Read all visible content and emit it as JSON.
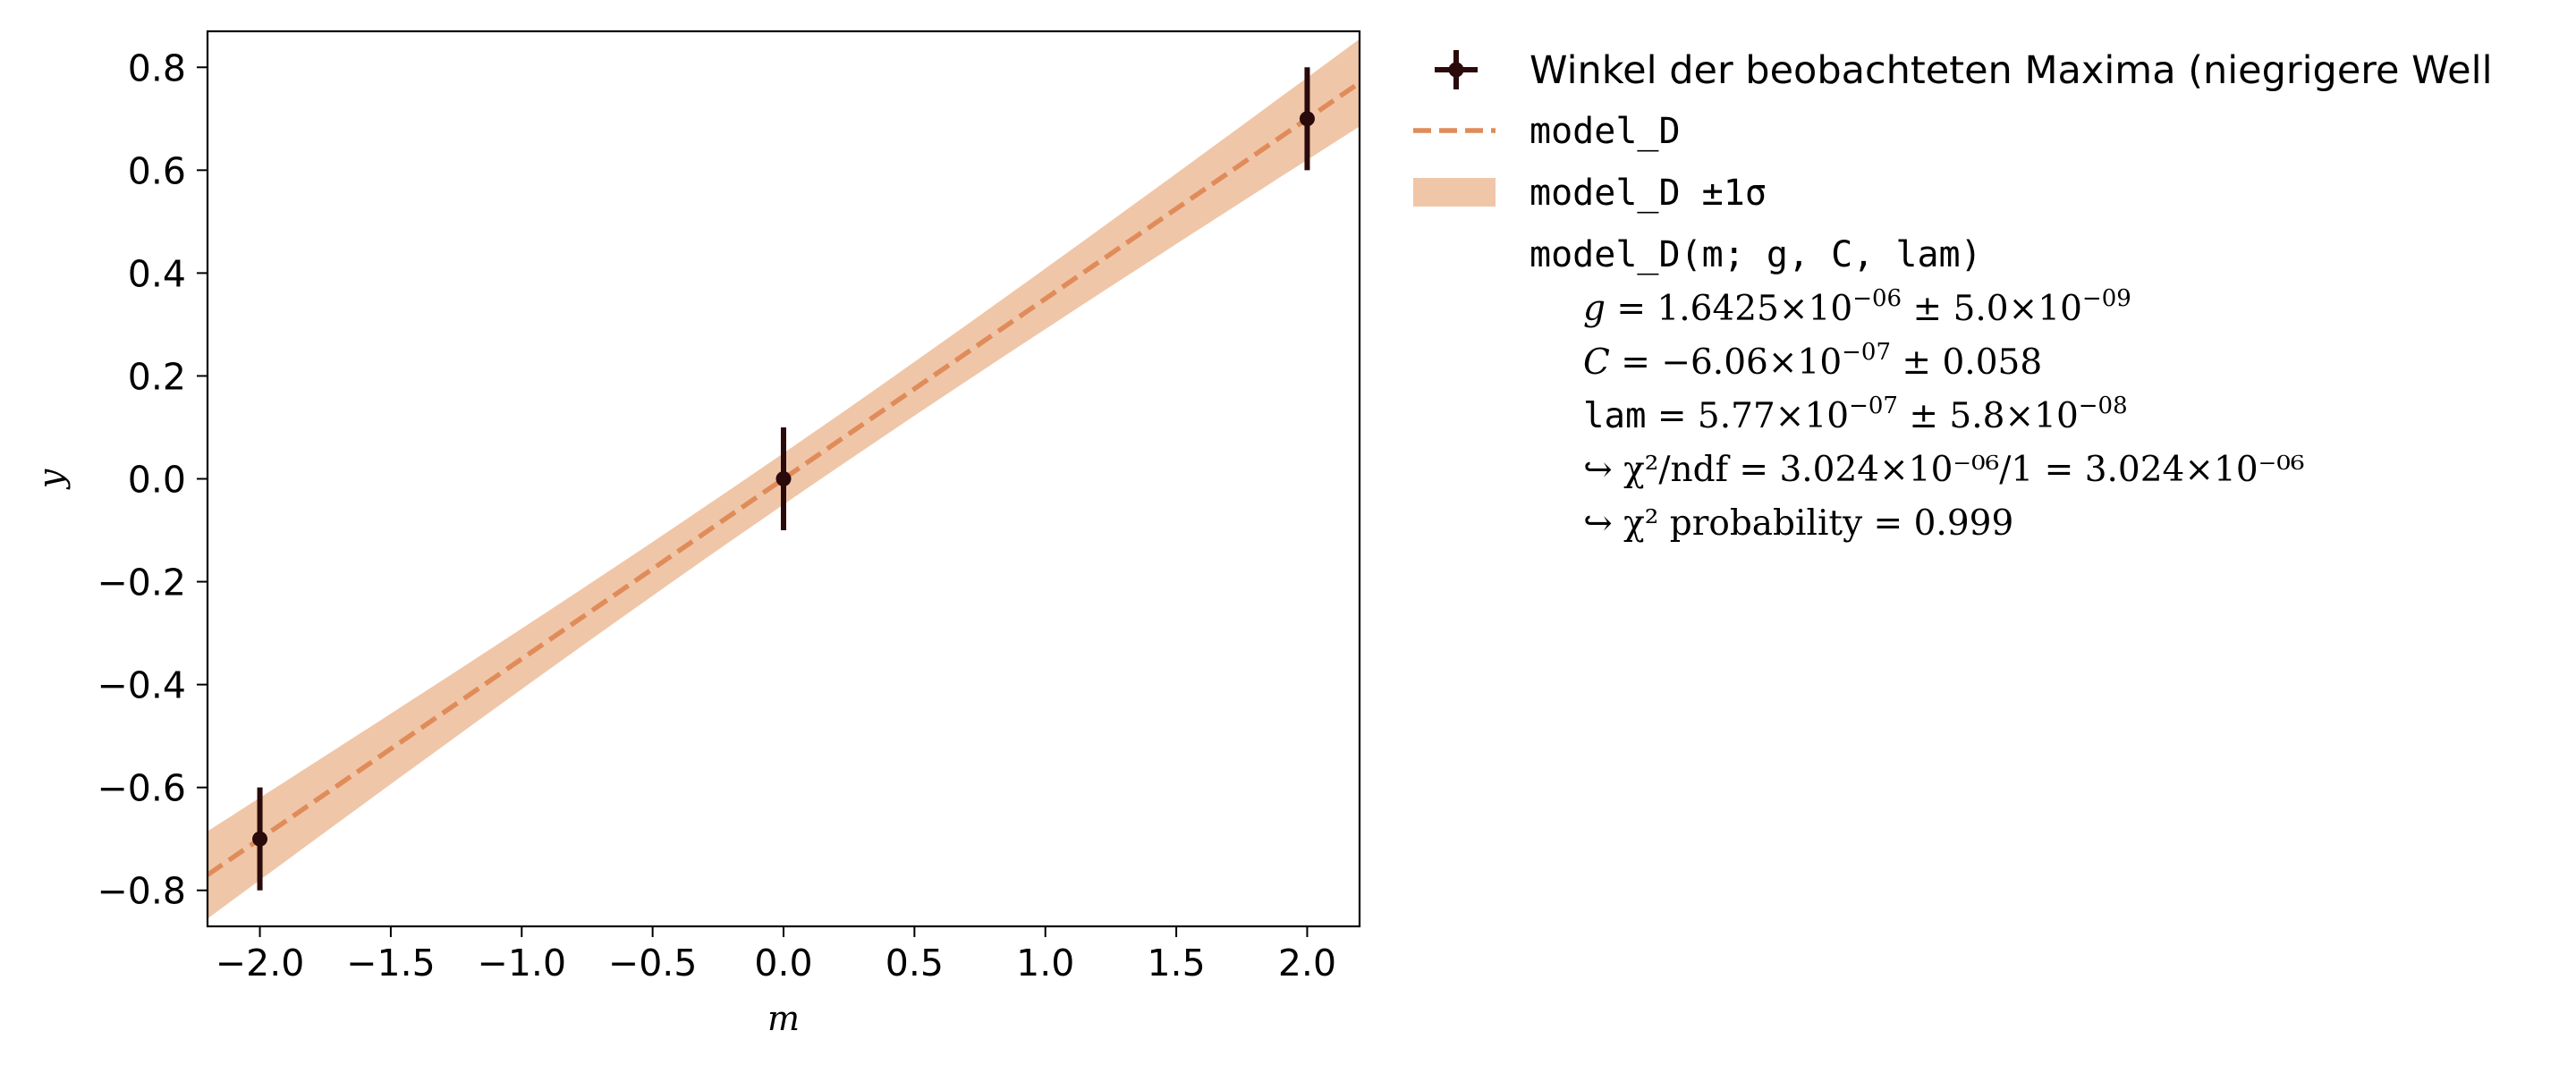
{
  "chart_data": {
    "type": "scatter",
    "xlabel": "m",
    "ylabel": "y",
    "xlim": [
      -2.2,
      2.2
    ],
    "ylim": [
      -0.87,
      0.87
    ],
    "x_ticks": [
      -2.0,
      -1.5,
      -1.0,
      -0.5,
      0.0,
      0.5,
      1.0,
      1.5,
      2.0
    ],
    "x_tick_labels": [
      "−2.0",
      "−1.5",
      "−1.0",
      "−0.5",
      "0.0",
      "0.5",
      "1.0",
      "1.5",
      "2.0"
    ],
    "y_ticks": [
      -0.8,
      -0.6,
      -0.4,
      -0.2,
      0.0,
      0.2,
      0.4,
      0.6,
      0.8
    ],
    "y_tick_labels": [
      "−0.8",
      "−0.6",
      "−0.4",
      "−0.2",
      "0.0",
      "0.2",
      "0.4",
      "0.6",
      "0.8"
    ],
    "grid": false,
    "legend_position": "outside-right",
    "data_series": {
      "name": "Winkel der beobachteten Maxima (niegrigere Well",
      "color": "#2a0a0a",
      "x": [
        -2,
        0,
        2
      ],
      "y": [
        -0.7,
        0.0,
        0.7
      ],
      "yerr": [
        0.1,
        0.1,
        0.1
      ]
    },
    "model_series": {
      "name": "model_D",
      "color": "#e08c5a",
      "x": [
        -2.2,
        2.2
      ],
      "y": [
        -0.77,
        0.77
      ],
      "band_name": "model_D ±1σ",
      "band_color": "#f0c6a8",
      "band_lower": [
        -0.855,
        0.685
      ],
      "band_upper": [
        -0.685,
        0.855
      ],
      "band_half_width_at_zero": 0.05
    },
    "fit_info": {
      "title": "model_D(m; g, C, lam)",
      "params": [
        {
          "name": "g",
          "value": "1.6425×10",
          "value_exp": "−06",
          "error": "5.0×10",
          "error_exp": "−09"
        },
        {
          "name": "C",
          "value": "−6.06×10",
          "value_exp": "−07",
          "error": "0.058",
          "error_exp": ""
        },
        {
          "name": "lam",
          "value": "5.77×10",
          "value_exp": "−07",
          "error": "5.8×10",
          "error_exp": "−08"
        }
      ],
      "chi2_ndf": "↪ χ²/ndf = 3.024×10⁻⁰⁶/1 = 3.024×10⁻⁰⁶",
      "chi2_prob": "↪ χ² probability = 0.999"
    }
  }
}
